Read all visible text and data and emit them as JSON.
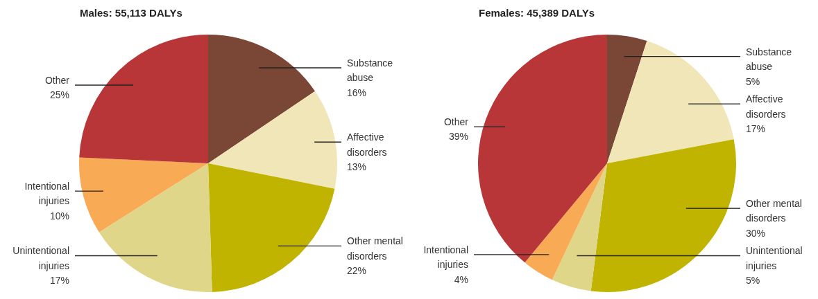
{
  "chart_data": [
    {
      "type": "pie",
      "title": "Males: 55,113 DALYs",
      "categories": [
        "Substance abuse",
        "Affective disorders",
        "Other mental disorders",
        "Unintentional injuries",
        "Intentional injuries",
        "Other"
      ],
      "values": [
        16,
        13,
        22,
        17,
        10,
        25
      ],
      "value_labels": [
        "16%",
        "13%",
        "22%",
        "17%",
        "10%",
        "25%"
      ],
      "colors": [
        "#7a4636",
        "#f0e6b8",
        "#c0b400",
        "#e0d68a",
        "#f9aa55",
        "#b83638"
      ]
    },
    {
      "type": "pie",
      "title": "Females: 45,389 DALYs",
      "categories": [
        "Substance abuse",
        "Affective disorders",
        "Other mental disorders",
        "Unintentional injuries",
        "Intentional injuries",
        "Other"
      ],
      "values": [
        5,
        17,
        30,
        5,
        4,
        39
      ],
      "value_labels": [
        "5%",
        "17%",
        "30%",
        "5%",
        "4%",
        "39%"
      ],
      "colors": [
        "#7a4636",
        "#f0e6b8",
        "#c0b400",
        "#e0d68a",
        "#f9aa55",
        "#b83638"
      ]
    }
  ]
}
